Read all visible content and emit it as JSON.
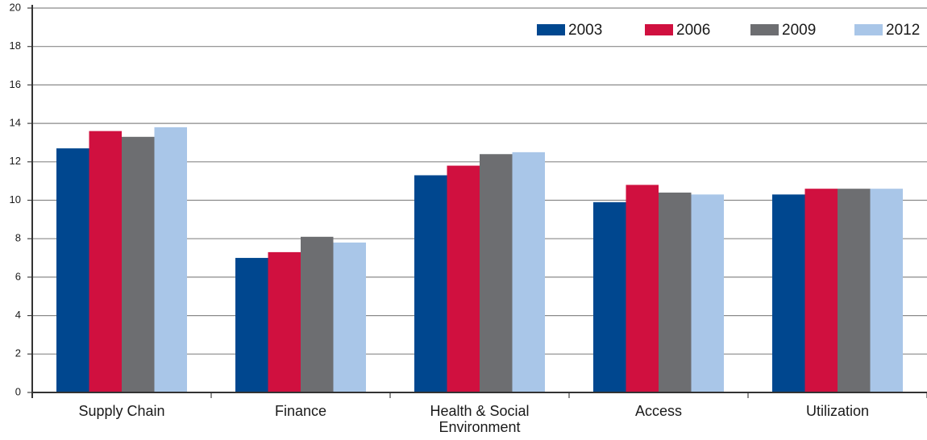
{
  "chart_data": {
    "type": "bar",
    "categories": [
      "Supply Chain",
      "Finance",
      "Health & Social Environment",
      "Access",
      "Utilization"
    ],
    "series": [
      {
        "name": "2003",
        "color": "#00478f",
        "values": [
          12.7,
          7.0,
          11.3,
          9.9,
          10.3
        ]
      },
      {
        "name": "2006",
        "color": "#d0103f",
        "values": [
          13.6,
          7.3,
          11.8,
          10.8,
          10.6
        ]
      },
      {
        "name": "2009",
        "color": "#6d6e71",
        "values": [
          13.3,
          8.1,
          12.4,
          10.4,
          10.6
        ]
      },
      {
        "name": "2012",
        "color": "#a9c6e8",
        "values": [
          13.8,
          7.8,
          12.5,
          10.3,
          10.6
        ]
      }
    ],
    "ylim": [
      0,
      20
    ],
    "yticks": [
      0,
      2,
      4,
      6,
      8,
      10,
      12,
      14,
      16,
      18,
      20
    ],
    "grid": true,
    "legend": "top-right"
  }
}
